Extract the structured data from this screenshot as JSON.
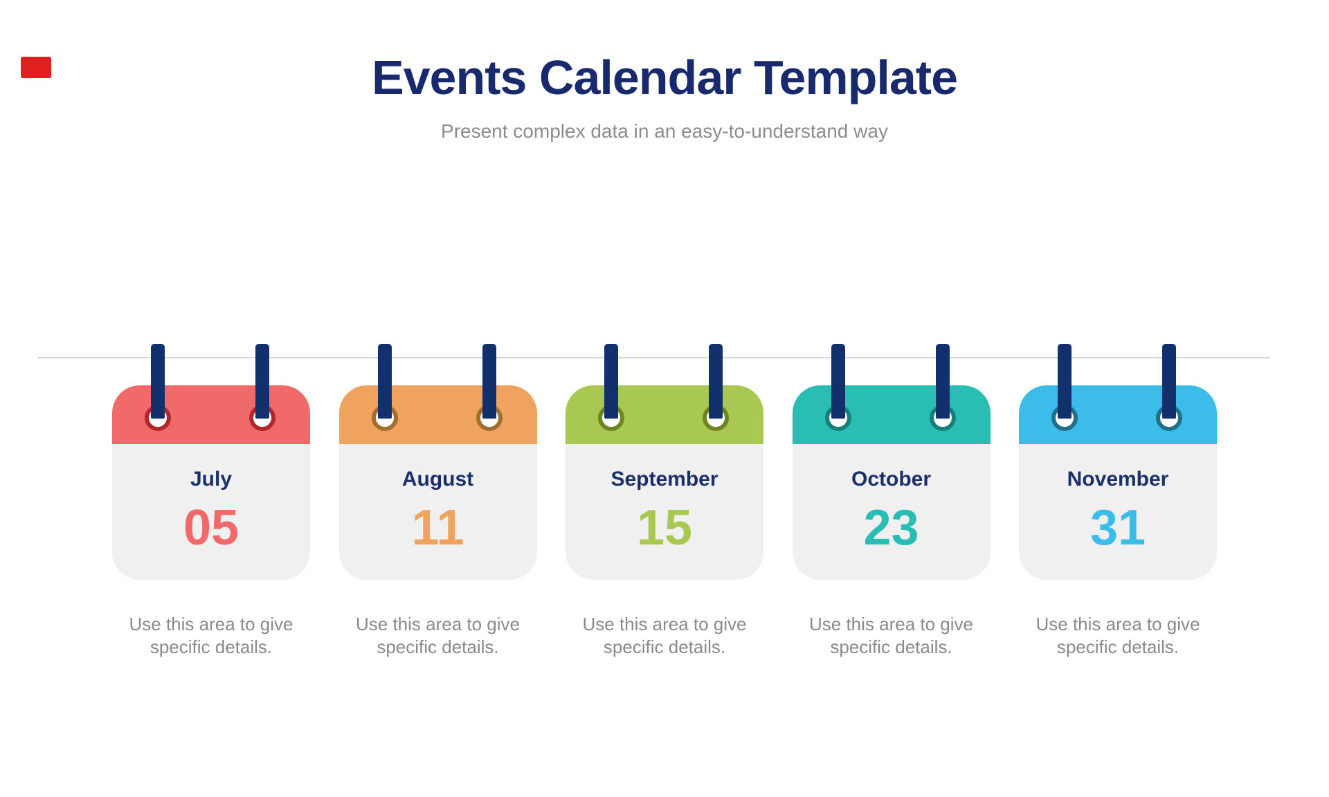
{
  "page": {
    "title": "Events Calendar Template",
    "subtitle": "Present complex data in an easy-to-understand way"
  },
  "marker": {
    "color": "#e0201e"
  },
  "theme": {
    "title": "#182a6d",
    "subtitle": "#8c8c8c",
    "line": "#d6d6d6",
    "pin": "#12306b",
    "card_body": "#f0f0f0",
    "month": "#1b2f6b",
    "caption": "#8a8a8a"
  },
  "events": [
    {
      "month": "July",
      "day": "05",
      "color": "#f16a6a",
      "ring_color": "#b3262b",
      "description": "Use this area to give specific details."
    },
    {
      "month": "August",
      "day": "11",
      "color": "#efa35f",
      "ring_color": "#a26e2e",
      "description": "Use this area to give specific details."
    },
    {
      "month": "September",
      "day": "15",
      "color": "#a8c851",
      "ring_color": "#6f8523",
      "description": "Use this area to give specific details."
    },
    {
      "month": "October",
      "day": "23",
      "color": "#2abdb3",
      "ring_color": "#158079",
      "description": "Use this area to give specific details."
    },
    {
      "month": "November",
      "day": "31",
      "color": "#3cbde9",
      "ring_color": "#20708c",
      "description": "Use this area to give specific details."
    }
  ]
}
